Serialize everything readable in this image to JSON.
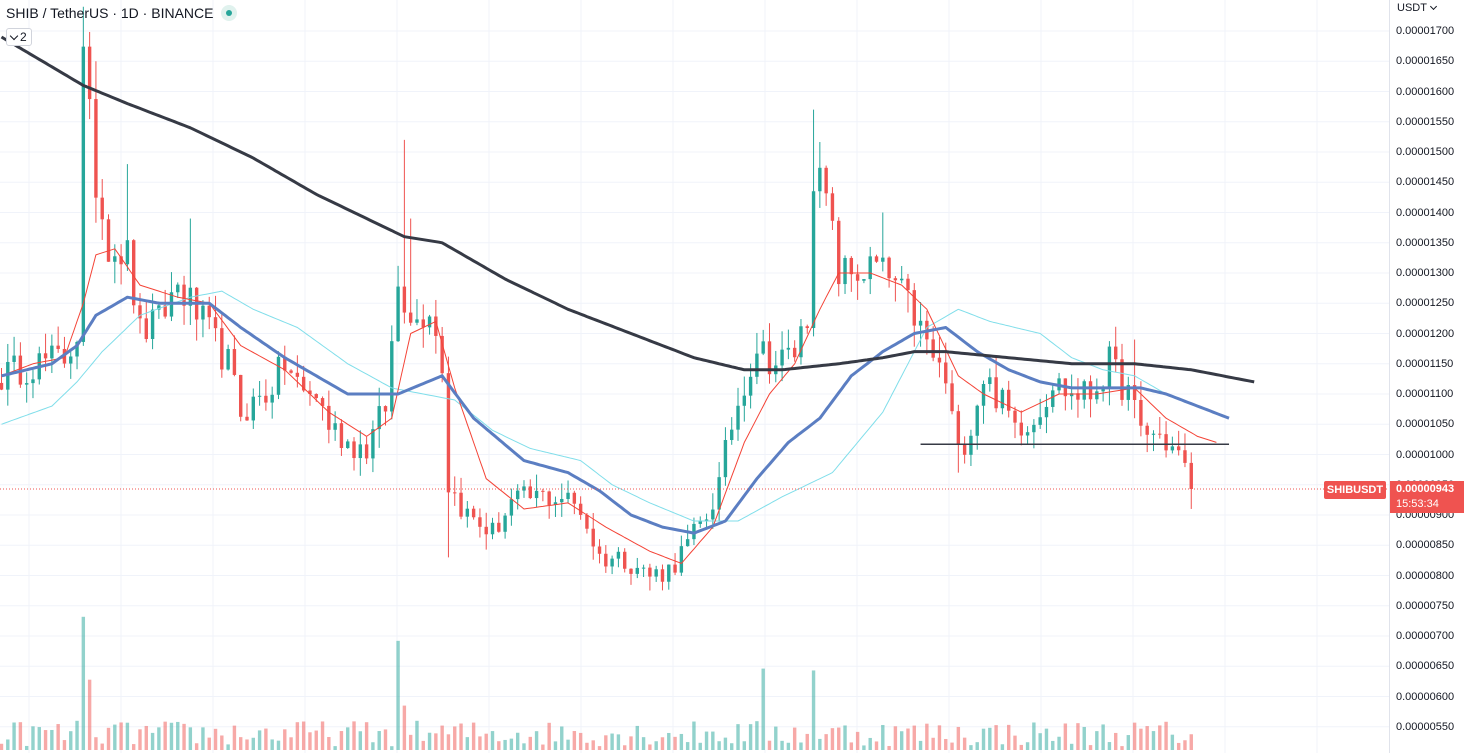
{
  "header": {
    "symbol_title": "SHIB / TetherUS · 1D · BINANCE",
    "collapse_count": "2"
  },
  "price_axis": {
    "currency": "USDT",
    "ticks": [
      "0.00001700",
      "0.00001650",
      "0.00001600",
      "0.00001550",
      "0.00001500",
      "0.00001450",
      "0.00001400",
      "0.00001350",
      "0.00001300",
      "0.00001250",
      "0.00001200",
      "0.00001150",
      "0.00001100",
      "0.00001050",
      "0.00001000",
      "0.00000950",
      "0.00000900",
      "0.00000850",
      "0.00000800",
      "0.00000750",
      "0.00000700",
      "0.00000650",
      "0.00000600",
      "0.00000550"
    ]
  },
  "last_price": {
    "symbol": "SHIBUSDT",
    "price": "0.00000943",
    "countdown": "15:53:34",
    "value": 9.43e-06
  },
  "colors": {
    "up": "#26a69a",
    "down": "#ef5350",
    "ma_fast": "#f44336",
    "ma_mid": "#5b7ec2",
    "ma_slow": "#80deea",
    "ma_long": "#363a45",
    "support_line": "#363a45"
  },
  "chart_data": {
    "type": "candlestick",
    "title": "SHIB / TetherUS · 1D · BINANCE",
    "ylim": [
      5.3e-06,
      1.75e-05
    ],
    "grid": true,
    "num_candles": 190,
    "price_path_keypoints": [
      [
        0,
        1.13e-05
      ],
      [
        5,
        1.15e-05
      ],
      [
        10,
        1.16e-05
      ],
      [
        12,
        1.2e-05
      ],
      [
        13,
        1.65e-05
      ],
      [
        15,
        1.45e-05
      ],
      [
        17,
        1.35e-05
      ],
      [
        20,
        1.33e-05
      ],
      [
        22,
        1.2e-05
      ],
      [
        25,
        1.22e-05
      ],
      [
        28,
        1.28e-05
      ],
      [
        30,
        1.25e-05
      ],
      [
        33,
        1.2e-05
      ],
      [
        36,
        1.15e-05
      ],
      [
        38,
        1.07e-05
      ],
      [
        42,
        1.1e-05
      ],
      [
        45,
        1.15e-05
      ],
      [
        48,
        1.1e-05
      ],
      [
        50,
        1.1e-05
      ],
      [
        52,
        1.05e-05
      ],
      [
        55,
        1.02e-05
      ],
      [
        58,
        1.01e-05
      ],
      [
        61,
        1.08e-05
      ],
      [
        63,
        1.28e-05
      ],
      [
        66,
        1.22e-05
      ],
      [
        68,
        1.25e-05
      ],
      [
        70,
        1.15e-05
      ],
      [
        71,
        9.5e-06
      ],
      [
        74,
        9e-06
      ],
      [
        78,
        8.7e-06
      ],
      [
        81,
        9.2e-06
      ],
      [
        85,
        9.3e-06
      ],
      [
        89,
        9.3e-06
      ],
      [
        92,
        9.1e-06
      ],
      [
        95,
        8.3e-06
      ],
      [
        99,
        8.3e-06
      ],
      [
        103,
        8e-06
      ],
      [
        106,
        8.1e-06
      ],
      [
        109,
        8.5e-06
      ],
      [
        112,
        9e-06
      ],
      [
        114,
        9.5e-06
      ],
      [
        116,
        1.05e-05
      ],
      [
        118,
        1.12e-05
      ],
      [
        120,
        1.18e-05
      ],
      [
        123,
        1.15e-05
      ],
      [
        126,
        1.17e-05
      ],
      [
        128,
        1.23e-05
      ],
      [
        129,
        1.47e-05
      ],
      [
        131,
        1.42e-05
      ],
      [
        133,
        1.3e-05
      ],
      [
        136,
        1.3e-05
      ],
      [
        139,
        1.31e-05
      ],
      [
        142,
        1.28e-05
      ],
      [
        145,
        1.23e-05
      ],
      [
        147,
        1.18e-05
      ],
      [
        150,
        1.12e-05
      ],
      [
        152,
        1e-05
      ],
      [
        154,
        1.05e-05
      ],
      [
        156,
        1.13e-05
      ],
      [
        158,
        1.1e-05
      ],
      [
        161,
        1.05e-05
      ],
      [
        164,
        1.06e-05
      ],
      [
        167,
        1.12e-05
      ],
      [
        170,
        1.1e-05
      ],
      [
        173,
        1.1e-05
      ],
      [
        176,
        1.15e-05
      ],
      [
        179,
        1.1e-05
      ],
      [
        181,
        1.04e-05
      ],
      [
        184,
        1.03e-05
      ],
      [
        187,
        1e-05
      ],
      [
        189,
        9.43e-06
      ]
    ],
    "spikes": [
      [
        13,
        1.74e-05,
        "high"
      ],
      [
        14,
        1.67e-05,
        "high"
      ],
      [
        15,
        1.65e-05,
        "high"
      ],
      [
        20,
        1.48e-05,
        "high"
      ],
      [
        30,
        1.39e-05,
        "high"
      ],
      [
        64,
        1.52e-05,
        "high"
      ],
      [
        65,
        1.39e-05,
        "high"
      ],
      [
        71,
        8.3e-06,
        "low"
      ],
      [
        95,
        8.2e-06,
        "low"
      ],
      [
        105,
        7.8e-06,
        "low"
      ],
      [
        129,
        1.57e-05,
        "high"
      ],
      [
        140,
        1.4e-05,
        "high"
      ],
      [
        152,
        9.7e-06,
        "low"
      ],
      [
        180,
        1.19e-05,
        "high"
      ],
      [
        189,
        9.1e-06,
        "low"
      ]
    ],
    "volume_spikes": [
      [
        13,
        0.72
      ],
      [
        14,
        0.38
      ],
      [
        63,
        0.59
      ],
      [
        64,
        0.24
      ],
      [
        121,
        0.44
      ],
      [
        129,
        0.43
      ]
    ],
    "ma_long_keypoints": [
      [
        0,
        1.69e-05
      ],
      [
        13,
        1.61e-05
      ],
      [
        20,
        1.58e-05
      ],
      [
        30,
        1.54e-05
      ],
      [
        40,
        1.49e-05
      ],
      [
        50,
        1.43e-05
      ],
      [
        64,
        1.36e-05
      ],
      [
        70,
        1.35e-05
      ],
      [
        80,
        1.29e-05
      ],
      [
        90,
        1.24e-05
      ],
      [
        100,
        1.2e-05
      ],
      [
        110,
        1.16e-05
      ],
      [
        118,
        1.14e-05
      ],
      [
        124,
        1.14e-05
      ],
      [
        133,
        1.15e-05
      ],
      [
        140,
        1.16e-05
      ],
      [
        145,
        1.17e-05
      ],
      [
        150,
        1.17e-05
      ],
      [
        160,
        1.16e-05
      ],
      [
        170,
        1.15e-05
      ],
      [
        180,
        1.15e-05
      ],
      [
        189,
        1.14e-05
      ],
      [
        199,
        1.12e-05
      ]
    ],
    "ma_mid_keypoints": [
      [
        0,
        1.13e-05
      ],
      [
        8,
        1.15e-05
      ],
      [
        12,
        1.18e-05
      ],
      [
        15,
        1.23e-05
      ],
      [
        20,
        1.26e-05
      ],
      [
        25,
        1.25e-05
      ],
      [
        33,
        1.25e-05
      ],
      [
        38,
        1.21e-05
      ],
      [
        45,
        1.16e-05
      ],
      [
        55,
        1.1e-05
      ],
      [
        63,
        1.1e-05
      ],
      [
        70,
        1.13e-05
      ],
      [
        75,
        1.06e-05
      ],
      [
        83,
        9.9e-06
      ],
      [
        90,
        9.7e-06
      ],
      [
        95,
        9.4e-06
      ],
      [
        100,
        9e-06
      ],
      [
        105,
        8.8e-06
      ],
      [
        110,
        8.7e-06
      ],
      [
        115,
        8.9e-06
      ],
      [
        120,
        9.6e-06
      ],
      [
        125,
        1.02e-05
      ],
      [
        130,
        1.06e-05
      ],
      [
        135,
        1.13e-05
      ],
      [
        140,
        1.17e-05
      ],
      [
        145,
        1.2e-05
      ],
      [
        150,
        1.21e-05
      ],
      [
        155,
        1.17e-05
      ],
      [
        160,
        1.14e-05
      ],
      [
        165,
        1.12e-05
      ],
      [
        170,
        1.11e-05
      ],
      [
        175,
        1.11e-05
      ],
      [
        181,
        1.11e-05
      ],
      [
        185,
        1.1e-05
      ],
      [
        190,
        1.08e-05
      ],
      [
        195,
        1.06e-05
      ]
    ],
    "ma_slow_keypoints": [
      [
        0,
        1.05e-05
      ],
      [
        8,
        1.08e-05
      ],
      [
        12,
        1.12e-05
      ],
      [
        16,
        1.17e-05
      ],
      [
        22,
        1.23e-05
      ],
      [
        30,
        1.26e-05
      ],
      [
        35,
        1.27e-05
      ],
      [
        40,
        1.24e-05
      ],
      [
        47,
        1.21e-05
      ],
      [
        55,
        1.15e-05
      ],
      [
        62,
        1.11e-05
      ],
      [
        67,
        1.1e-05
      ],
      [
        72,
        1.09e-05
      ],
      [
        78,
        1.04e-05
      ],
      [
        84,
        1.01e-05
      ],
      [
        92,
        9.9e-06
      ],
      [
        97,
        9.5e-06
      ],
      [
        103,
        9.2e-06
      ],
      [
        110,
        8.9e-06
      ],
      [
        117,
        8.9e-06
      ],
      [
        124,
        9.3e-06
      ],
      [
        132,
        9.7e-06
      ],
      [
        140,
        1.07e-05
      ],
      [
        147,
        1.21e-05
      ],
      [
        152,
        1.24e-05
      ],
      [
        157,
        1.22e-05
      ],
      [
        165,
        1.2e-05
      ],
      [
        170,
        1.16e-05
      ],
      [
        175,
        1.14e-05
      ],
      [
        180,
        1.13e-05
      ],
      [
        185,
        1.1e-05
      ],
      [
        190,
        1.08e-05
      ],
      [
        195,
        1.06e-05
      ]
    ],
    "ma_fast_keypoints": [
      [
        0,
        1.13e-05
      ],
      [
        5,
        1.15e-05
      ],
      [
        10,
        1.16e-05
      ],
      [
        13,
        1.25e-05
      ],
      [
        15,
        1.33e-05
      ],
      [
        18,
        1.34e-05
      ],
      [
        22,
        1.28e-05
      ],
      [
        28,
        1.26e-05
      ],
      [
        33,
        1.25e-05
      ],
      [
        38,
        1.18e-05
      ],
      [
        45,
        1.14e-05
      ],
      [
        52,
        1.07e-05
      ],
      [
        58,
        1.03e-05
      ],
      [
        62,
        1.06e-05
      ],
      [
        65,
        1.2e-05
      ],
      [
        69,
        1.22e-05
      ],
      [
        72,
        1.11e-05
      ],
      [
        77,
        9.6e-06
      ],
      [
        83,
        9.1e-06
      ],
      [
        90,
        9.2e-06
      ],
      [
        96,
        8.8e-06
      ],
      [
        103,
        8.4e-06
      ],
      [
        108,
        8.2e-06
      ],
      [
        113,
        8.8e-06
      ],
      [
        118,
        1.02e-05
      ],
      [
        122,
        1.1e-05
      ],
      [
        126,
        1.15e-05
      ],
      [
        130,
        1.24e-05
      ],
      [
        133,
        1.3e-05
      ],
      [
        138,
        1.3e-05
      ],
      [
        143,
        1.28e-05
      ],
      [
        147,
        1.24e-05
      ],
      [
        152,
        1.13e-05
      ],
      [
        156,
        1.1e-05
      ],
      [
        162,
        1.07e-05
      ],
      [
        168,
        1.1e-05
      ],
      [
        174,
        1.1e-05
      ],
      [
        180,
        1.11e-05
      ],
      [
        185,
        1.06e-05
      ],
      [
        190,
        1.03e-05
      ],
      [
        193,
        1.02e-05
      ]
    ],
    "support_line": {
      "start_index": 146,
      "end_index": 195,
      "price": 1.017e-05
    }
  }
}
